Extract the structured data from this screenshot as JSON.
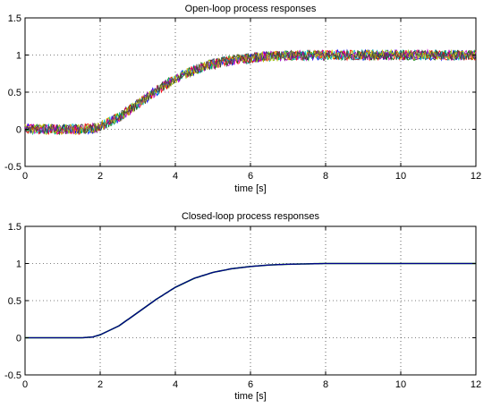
{
  "chart_data": [
    {
      "type": "line",
      "title": "Open-loop process responses",
      "xlabel": "time [s]",
      "ylabel": "",
      "xlim": [
        0,
        12
      ],
      "ylim": [
        -0.5,
        1.5
      ],
      "x_ticks": [
        0,
        2,
        4,
        6,
        8,
        10,
        12
      ],
      "y_ticks": [
        -0.5,
        0,
        0.5,
        1,
        1.5
      ],
      "x_tick_labels": [
        "0",
        "2",
        "4",
        "6",
        "8",
        "10",
        "12"
      ],
      "y_tick_labels": [
        "-0.5",
        "0",
        "0.5",
        "1",
        "1.5"
      ],
      "grid": true,
      "noisy": true,
      "noise_amplitude": 0.07,
      "series_colors": [
        "#0000ff",
        "#008000",
        "#ff0000",
        "#00bfbf",
        "#bf00bf",
        "#bfbf00",
        "#404040"
      ],
      "x": [
        0,
        1,
        1.5,
        1.8,
        2,
        2.5,
        3,
        3.5,
        4,
        4.5,
        5,
        5.5,
        6,
        6.5,
        7,
        8,
        9,
        10,
        11,
        12
      ],
      "y": [
        0,
        0,
        0,
        0.01,
        0.04,
        0.16,
        0.34,
        0.52,
        0.68,
        0.8,
        0.88,
        0.93,
        0.96,
        0.98,
        0.99,
        1.0,
        1.0,
        1.0,
        1.0,
        1.0
      ]
    },
    {
      "type": "line",
      "title": "Closed-loop process responses",
      "xlabel": "time [s]",
      "ylabel": "",
      "xlim": [
        0,
        12
      ],
      "ylim": [
        -0.5,
        1.5
      ],
      "x_ticks": [
        0,
        2,
        4,
        6,
        8,
        10,
        12
      ],
      "y_ticks": [
        -0.5,
        0,
        0.5,
        1,
        1.5
      ],
      "x_tick_labels": [
        "0",
        "2",
        "4",
        "6",
        "8",
        "10",
        "12"
      ],
      "y_tick_labels": [
        "-0.5",
        "0",
        "0.5",
        "1",
        "1.5"
      ],
      "grid": true,
      "noisy": false,
      "series_colors": [
        "#008000",
        "#00008b"
      ],
      "x": [
        0,
        1,
        1.5,
        1.8,
        2,
        2.5,
        3,
        3.5,
        4,
        4.5,
        5,
        5.5,
        6,
        6.5,
        7,
        8,
        9,
        10,
        11,
        12
      ],
      "y": [
        0,
        0,
        0,
        0.01,
        0.04,
        0.16,
        0.34,
        0.52,
        0.68,
        0.8,
        0.88,
        0.93,
        0.96,
        0.98,
        0.99,
        1.0,
        1.0,
        1.0,
        1.0,
        1.0
      ]
    }
  ]
}
